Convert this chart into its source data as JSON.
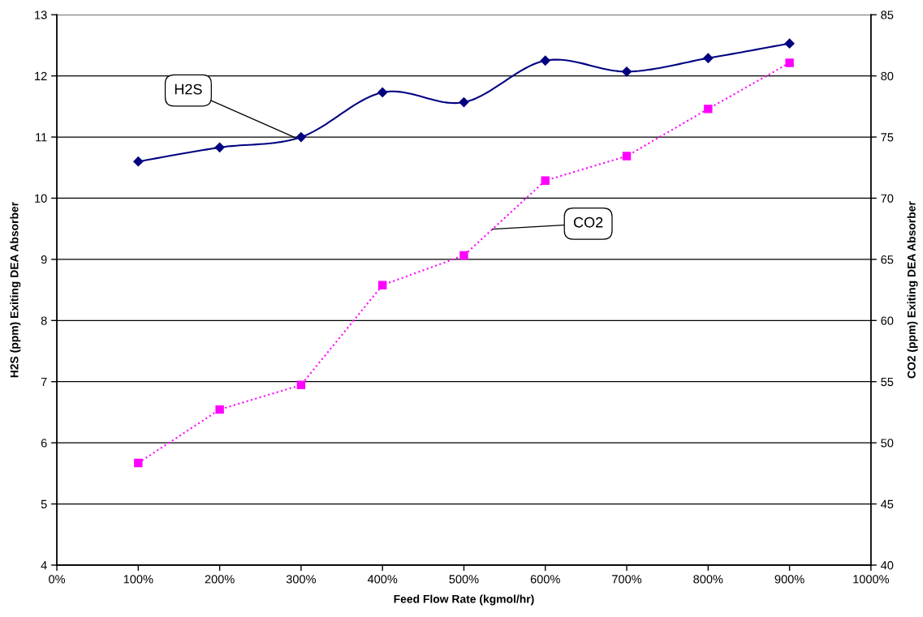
{
  "chart_data": {
    "type": "line",
    "xlabel": "Feed Flow Rate (kgmol/hr)",
    "ylabel": "H2S (ppm) Exiting DEA Absorber",
    "y2label": "CO2 (ppm) Exiting DEA Absorber",
    "x": [
      100,
      200,
      300,
      400,
      500,
      600,
      700,
      800,
      900
    ],
    "series": [
      {
        "name": "H2S",
        "color": "#000080",
        "marker": "diamond",
        "line_style": "solid",
        "values": [
          10.6,
          10.83,
          11.0,
          11.73,
          11.57,
          12.25,
          12.07,
          12.29,
          12.53
        ]
      },
      {
        "name": "CO2",
        "color": "#ff00ff",
        "marker": "square",
        "line_style": "dotted",
        "axis": "y2",
        "values": [
          48.35,
          52.72,
          54.73,
          62.89,
          65.32,
          71.44,
          73.44,
          77.3,
          81.07
        ]
      }
    ],
    "xlim": [
      0,
      1000
    ],
    "xticks": [
      {
        "value": 0,
        "label": "0%"
      },
      {
        "value": 100,
        "label": "100%"
      },
      {
        "value": 200,
        "label": "200%"
      },
      {
        "value": 300,
        "label": "300%"
      },
      {
        "value": 400,
        "label": "400%"
      },
      {
        "value": 500,
        "label": "500%"
      },
      {
        "value": 600,
        "label": "600%"
      },
      {
        "value": 700,
        "label": "700%"
      },
      {
        "value": 800,
        "label": "800%"
      },
      {
        "value": 900,
        "label": "900%"
      },
      {
        "value": 1000,
        "label": "1000%"
      }
    ],
    "ylim": [
      4,
      13
    ],
    "yticks": [
      4,
      5,
      6,
      7,
      8,
      9,
      10,
      11,
      12,
      13
    ],
    "y2lim": [
      40,
      85
    ],
    "y2ticks": [
      40,
      45,
      50,
      55,
      60,
      65,
      70,
      75,
      80,
      85
    ],
    "grid": "y"
  }
}
